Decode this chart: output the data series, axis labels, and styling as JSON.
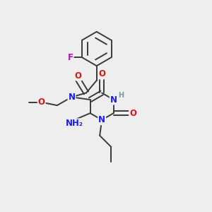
{
  "bg_color": "#eeeeee",
  "atom_colors": {
    "C": "#3a3a3a",
    "N": "#1a1aee",
    "O": "#dd1111",
    "F": "#cc00cc",
    "H": "#7a9a9a"
  },
  "bond_color": "#3a3a3a",
  "line_width": 1.4,
  "dbo": 0.01,
  "fs": 8.5,
  "fs2": 7.0
}
